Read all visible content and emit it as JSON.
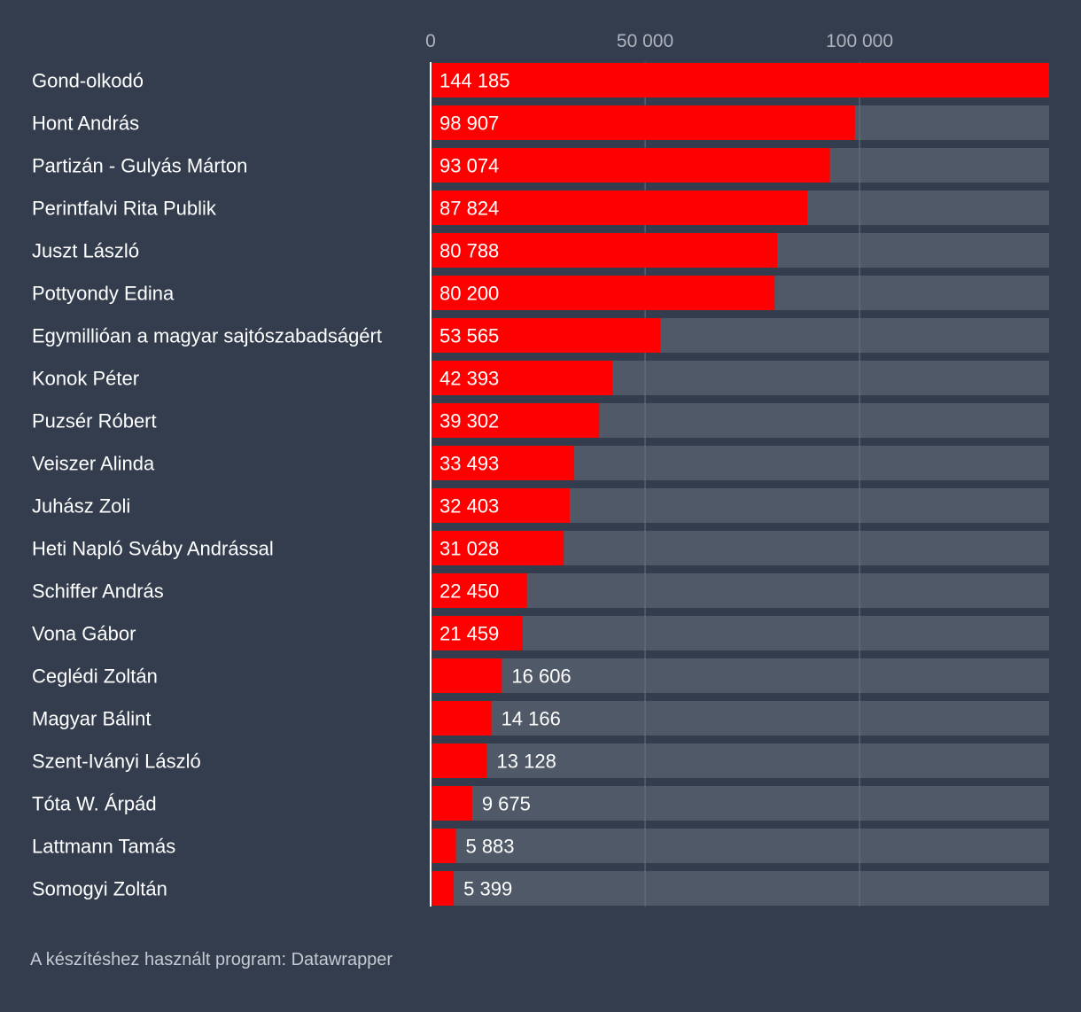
{
  "chart_data": {
    "type": "bar",
    "orientation": "horizontal",
    "title": "",
    "xlabel": "",
    "ylabel": "",
    "xlim": [
      0,
      144185
    ],
    "ticks": [
      {
        "value": 0,
        "label": "0"
      },
      {
        "value": 50000,
        "label": "50 000"
      },
      {
        "value": 100000,
        "label": "100 000"
      }
    ],
    "grid": true,
    "categories": [
      "Gond-olkodó",
      "Hont András",
      "Partizán - Gulyás Márton",
      "Perintfalvi Rita Publik",
      "Juszt László",
      "Pottyondy Edina",
      "Egymillióan a magyar sajtószabadságért",
      "Konok Péter",
      "Puzsér Róbert",
      "Veiszer Alinda",
      "Juhász Zoli",
      "Heti Napló Sváby Andrással",
      "Schiffer András",
      "Vona Gábor",
      "Ceglédi Zoltán",
      "Magyar Bálint",
      "Szent-Iványi László",
      "Tóta W. Árpád",
      "Lattmann Tamás",
      "Somogyi Zoltán"
    ],
    "values": [
      144185,
      98907,
      93074,
      87824,
      80788,
      80200,
      53565,
      42393,
      39302,
      33493,
      32403,
      31028,
      22450,
      21459,
      16606,
      14166,
      13128,
      9675,
      5883,
      5399
    ],
    "value_labels": [
      "144 185",
      "98 907",
      "93 074",
      "87 824",
      "80 788",
      "80 200",
      "53 565",
      "42 393",
      "39 302",
      "33 493",
      "32 403",
      "31 028",
      "22 450",
      "21 459",
      "16 606",
      "14 166",
      "13 128",
      "9 675",
      "5 883",
      "5 399"
    ]
  },
  "colors": {
    "background": "#333d4d",
    "bar": "#ff0000",
    "track": "#4f5968",
    "gridline": "#69727f",
    "axis": "#ffffff"
  },
  "footer": {
    "source": "A készítéshez használt program: Datawrapper"
  }
}
